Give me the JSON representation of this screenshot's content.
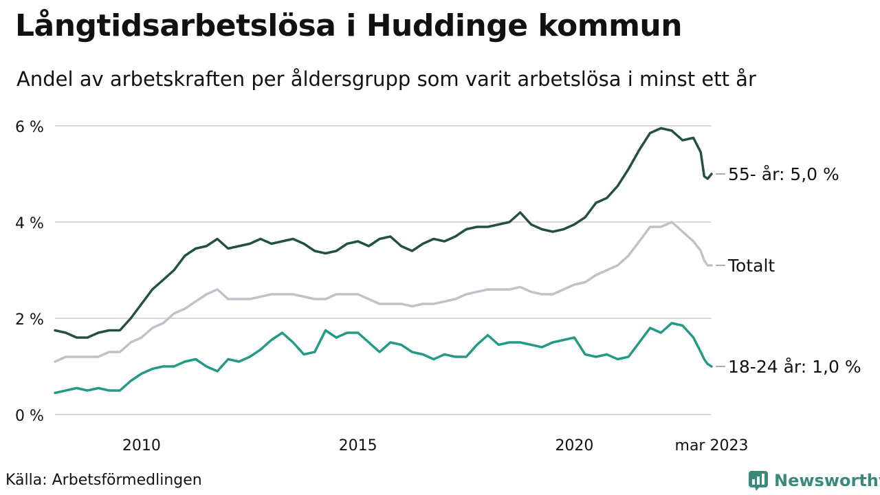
{
  "header": {
    "title": "Långtidsarbetslösa i Huddinge kommun",
    "subtitle": "Andel av arbetskraften per åldersgrupp som varit arbetslösa i minst ett år"
  },
  "footer": {
    "source": "Källa: Arbetsförmedlingen",
    "brand": "Newsworthy"
  },
  "colors": {
    "series_55": "#234f45",
    "series_total": "#c3bfcb",
    "series_young": "#229a85",
    "grid": "#d9d9d9",
    "brand": "#3a8a7b"
  },
  "icons": {
    "brand_logo": "newsworthy-logo-icon"
  },
  "chart_data": {
    "type": "line",
    "title": "Långtidsarbetslösa i Huddinge kommun",
    "subtitle": "Andel av arbetskraften per åldersgrupp som varit arbetslösa i minst ett år",
    "xlabel": "",
    "ylabel": "",
    "ylim": [
      0,
      6
    ],
    "yticks": [
      0,
      2,
      4,
      6
    ],
    "ytick_labels": [
      "0 %",
      "2 %",
      "4 %",
      "6 %"
    ],
    "xtick_labels": [
      {
        "x": 2010.0,
        "label": "2010"
      },
      {
        "x": 2015.0,
        "label": "2015"
      },
      {
        "x": 2020.0,
        "label": "2020"
      },
      {
        "x": 2023.17,
        "label": "mar 2023"
      }
    ],
    "xlim": [
      2008.0,
      2023.17
    ],
    "grid": true,
    "legend": "end-labels",
    "series": [
      {
        "name": "55- år",
        "end_label": "55- år: 5,0 %",
        "color": "#234f45",
        "points": [
          [
            2008.0,
            1.75
          ],
          [
            2008.25,
            1.7
          ],
          [
            2008.5,
            1.6
          ],
          [
            2008.75,
            1.6
          ],
          [
            2009.0,
            1.7
          ],
          [
            2009.25,
            1.75
          ],
          [
            2009.5,
            1.75
          ],
          [
            2009.75,
            2.0
          ],
          [
            2010.0,
            2.3
          ],
          [
            2010.25,
            2.6
          ],
          [
            2010.5,
            2.8
          ],
          [
            2010.75,
            3.0
          ],
          [
            2011.0,
            3.3
          ],
          [
            2011.25,
            3.45
          ],
          [
            2011.5,
            3.5
          ],
          [
            2011.75,
            3.65
          ],
          [
            2012.0,
            3.45
          ],
          [
            2012.25,
            3.5
          ],
          [
            2012.5,
            3.55
          ],
          [
            2012.75,
            3.65
          ],
          [
            2013.0,
            3.55
          ],
          [
            2013.25,
            3.6
          ],
          [
            2013.5,
            3.65
          ],
          [
            2013.75,
            3.55
          ],
          [
            2014.0,
            3.4
          ],
          [
            2014.25,
            3.35
          ],
          [
            2014.5,
            3.4
          ],
          [
            2014.75,
            3.55
          ],
          [
            2015.0,
            3.6
          ],
          [
            2015.25,
            3.5
          ],
          [
            2015.5,
            3.65
          ],
          [
            2015.75,
            3.7
          ],
          [
            2016.0,
            3.5
          ],
          [
            2016.25,
            3.4
          ],
          [
            2016.5,
            3.55
          ],
          [
            2016.75,
            3.65
          ],
          [
            2017.0,
            3.6
          ],
          [
            2017.25,
            3.7
          ],
          [
            2017.5,
            3.85
          ],
          [
            2017.75,
            3.9
          ],
          [
            2018.0,
            3.9
          ],
          [
            2018.25,
            3.95
          ],
          [
            2018.5,
            4.0
          ],
          [
            2018.75,
            4.2
          ],
          [
            2019.0,
            3.95
          ],
          [
            2019.25,
            3.85
          ],
          [
            2019.5,
            3.8
          ],
          [
            2019.75,
            3.85
          ],
          [
            2020.0,
            3.95
          ],
          [
            2020.25,
            4.1
          ],
          [
            2020.5,
            4.4
          ],
          [
            2020.75,
            4.5
          ],
          [
            2021.0,
            4.75
          ],
          [
            2021.25,
            5.1
          ],
          [
            2021.5,
            5.5
          ],
          [
            2021.75,
            5.85
          ],
          [
            2022.0,
            5.95
          ],
          [
            2022.25,
            5.9
          ],
          [
            2022.5,
            5.7
          ],
          [
            2022.75,
            5.75
          ],
          [
            2022.92,
            5.45
          ],
          [
            2023.0,
            4.95
          ],
          [
            2023.08,
            4.9
          ],
          [
            2023.17,
            5.0
          ]
        ]
      },
      {
        "name": "Totalt",
        "end_label": "Totalt",
        "color": "#c3bfcb",
        "points": [
          [
            2008.0,
            1.1
          ],
          [
            2008.25,
            1.2
          ],
          [
            2008.5,
            1.2
          ],
          [
            2008.75,
            1.2
          ],
          [
            2009.0,
            1.2
          ],
          [
            2009.25,
            1.3
          ],
          [
            2009.5,
            1.3
          ],
          [
            2009.75,
            1.5
          ],
          [
            2010.0,
            1.6
          ],
          [
            2010.25,
            1.8
          ],
          [
            2010.5,
            1.9
          ],
          [
            2010.75,
            2.1
          ],
          [
            2011.0,
            2.2
          ],
          [
            2011.25,
            2.35
          ],
          [
            2011.5,
            2.5
          ],
          [
            2011.75,
            2.6
          ],
          [
            2012.0,
            2.4
          ],
          [
            2012.25,
            2.4
          ],
          [
            2012.5,
            2.4
          ],
          [
            2012.75,
            2.45
          ],
          [
            2013.0,
            2.5
          ],
          [
            2013.25,
            2.5
          ],
          [
            2013.5,
            2.5
          ],
          [
            2013.75,
            2.45
          ],
          [
            2014.0,
            2.4
          ],
          [
            2014.25,
            2.4
          ],
          [
            2014.5,
            2.5
          ],
          [
            2014.75,
            2.5
          ],
          [
            2015.0,
            2.5
          ],
          [
            2015.25,
            2.4
          ],
          [
            2015.5,
            2.3
          ],
          [
            2015.75,
            2.3
          ],
          [
            2016.0,
            2.3
          ],
          [
            2016.25,
            2.25
          ],
          [
            2016.5,
            2.3
          ],
          [
            2016.75,
            2.3
          ],
          [
            2017.0,
            2.35
          ],
          [
            2017.25,
            2.4
          ],
          [
            2017.5,
            2.5
          ],
          [
            2017.75,
            2.55
          ],
          [
            2018.0,
            2.6
          ],
          [
            2018.25,
            2.6
          ],
          [
            2018.5,
            2.6
          ],
          [
            2018.75,
            2.65
          ],
          [
            2019.0,
            2.55
          ],
          [
            2019.25,
            2.5
          ],
          [
            2019.5,
            2.5
          ],
          [
            2019.75,
            2.6
          ],
          [
            2020.0,
            2.7
          ],
          [
            2020.25,
            2.75
          ],
          [
            2020.5,
            2.9
          ],
          [
            2020.75,
            3.0
          ],
          [
            2021.0,
            3.1
          ],
          [
            2021.25,
            3.3
          ],
          [
            2021.5,
            3.6
          ],
          [
            2021.75,
            3.9
          ],
          [
            2022.0,
            3.9
          ],
          [
            2022.25,
            4.0
          ],
          [
            2022.5,
            3.8
          ],
          [
            2022.75,
            3.6
          ],
          [
            2022.92,
            3.4
          ],
          [
            2023.0,
            3.2
          ],
          [
            2023.08,
            3.1
          ],
          [
            2023.17,
            3.1
          ]
        ]
      },
      {
        "name": "18-24 år",
        "end_label": "18-24 år: 1,0 %",
        "color": "#229a85",
        "points": [
          [
            2008.0,
            0.45
          ],
          [
            2008.25,
            0.5
          ],
          [
            2008.5,
            0.55
          ],
          [
            2008.75,
            0.5
          ],
          [
            2009.0,
            0.55
          ],
          [
            2009.25,
            0.5
          ],
          [
            2009.5,
            0.5
          ],
          [
            2009.75,
            0.7
          ],
          [
            2010.0,
            0.85
          ],
          [
            2010.25,
            0.95
          ],
          [
            2010.5,
            1.0
          ],
          [
            2010.75,
            1.0
          ],
          [
            2011.0,
            1.1
          ],
          [
            2011.25,
            1.15
          ],
          [
            2011.5,
            1.0
          ],
          [
            2011.75,
            0.9
          ],
          [
            2012.0,
            1.15
          ],
          [
            2012.25,
            1.1
          ],
          [
            2012.5,
            1.2
          ],
          [
            2012.75,
            1.35
          ],
          [
            2013.0,
            1.55
          ],
          [
            2013.25,
            1.7
          ],
          [
            2013.5,
            1.5
          ],
          [
            2013.75,
            1.25
          ],
          [
            2014.0,
            1.3
          ],
          [
            2014.25,
            1.75
          ],
          [
            2014.5,
            1.6
          ],
          [
            2014.75,
            1.7
          ],
          [
            2015.0,
            1.7
          ],
          [
            2015.25,
            1.5
          ],
          [
            2015.5,
            1.3
          ],
          [
            2015.75,
            1.5
          ],
          [
            2016.0,
            1.45
          ],
          [
            2016.25,
            1.3
          ],
          [
            2016.5,
            1.25
          ],
          [
            2016.75,
            1.15
          ],
          [
            2017.0,
            1.25
          ],
          [
            2017.25,
            1.2
          ],
          [
            2017.5,
            1.2
          ],
          [
            2017.75,
            1.45
          ],
          [
            2018.0,
            1.65
          ],
          [
            2018.25,
            1.45
          ],
          [
            2018.5,
            1.5
          ],
          [
            2018.75,
            1.5
          ],
          [
            2019.0,
            1.45
          ],
          [
            2019.25,
            1.4
          ],
          [
            2019.5,
            1.5
          ],
          [
            2019.75,
            1.55
          ],
          [
            2020.0,
            1.6
          ],
          [
            2020.25,
            1.25
          ],
          [
            2020.5,
            1.2
          ],
          [
            2020.75,
            1.25
          ],
          [
            2021.0,
            1.15
          ],
          [
            2021.25,
            1.2
          ],
          [
            2021.5,
            1.5
          ],
          [
            2021.75,
            1.8
          ],
          [
            2022.0,
            1.7
          ],
          [
            2022.25,
            1.9
          ],
          [
            2022.5,
            1.85
          ],
          [
            2022.75,
            1.6
          ],
          [
            2022.92,
            1.3
          ],
          [
            2023.0,
            1.15
          ],
          [
            2023.08,
            1.05
          ],
          [
            2023.17,
            1.0
          ]
        ]
      }
    ]
  }
}
